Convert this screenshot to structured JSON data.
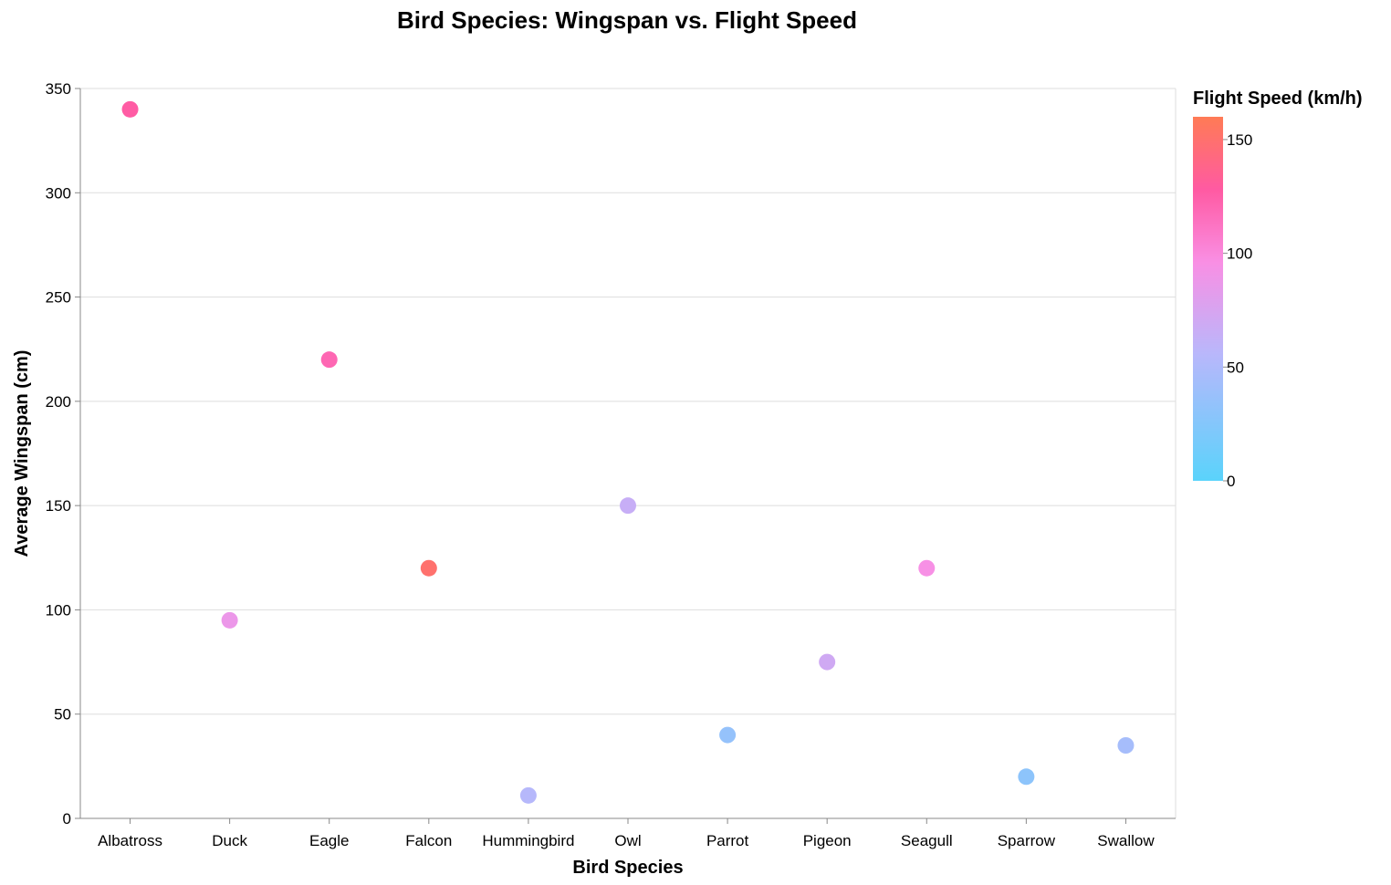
{
  "chart_data": {
    "type": "scatter",
    "title": "Bird Species: Wingspan vs. Flight Speed",
    "xlabel": "Bird Species",
    "ylabel": "Average Wingspan (cm)",
    "categories": [
      "Albatross",
      "Duck",
      "Eagle",
      "Falcon",
      "Hummingbird",
      "Owl",
      "Parrot",
      "Pigeon",
      "Seagull",
      "Sparrow",
      "Swallow"
    ],
    "wingspan_cm": [
      340,
      95,
      220,
      120,
      11,
      150,
      40,
      75,
      120,
      20,
      35
    ],
    "flight_speed_kmh": [
      127,
      88,
      120,
      150,
      54,
      65,
      35,
      70,
      95,
      30,
      45
    ],
    "ylim": [
      0,
      350
    ],
    "yticks": [
      0,
      50,
      100,
      150,
      200,
      250,
      300,
      350
    ],
    "grid": true,
    "color": {
      "field": "Flight Speed (km/h)",
      "legend_title": "Flight Speed (km/h)",
      "domain": [
        0,
        160
      ],
      "ticks": [
        0,
        50,
        100,
        150
      ],
      "stops": [
        {
          "at": 0.0,
          "color": "#5ad3fb"
        },
        {
          "at": 0.35,
          "color": "#b9b7fb"
        },
        {
          "at": 0.6,
          "color": "#f98fe4"
        },
        {
          "at": 0.8,
          "color": "#ff5aa2"
        },
        {
          "at": 1.0,
          "color": "#ff7b55"
        }
      ]
    },
    "legend_position": "right"
  }
}
